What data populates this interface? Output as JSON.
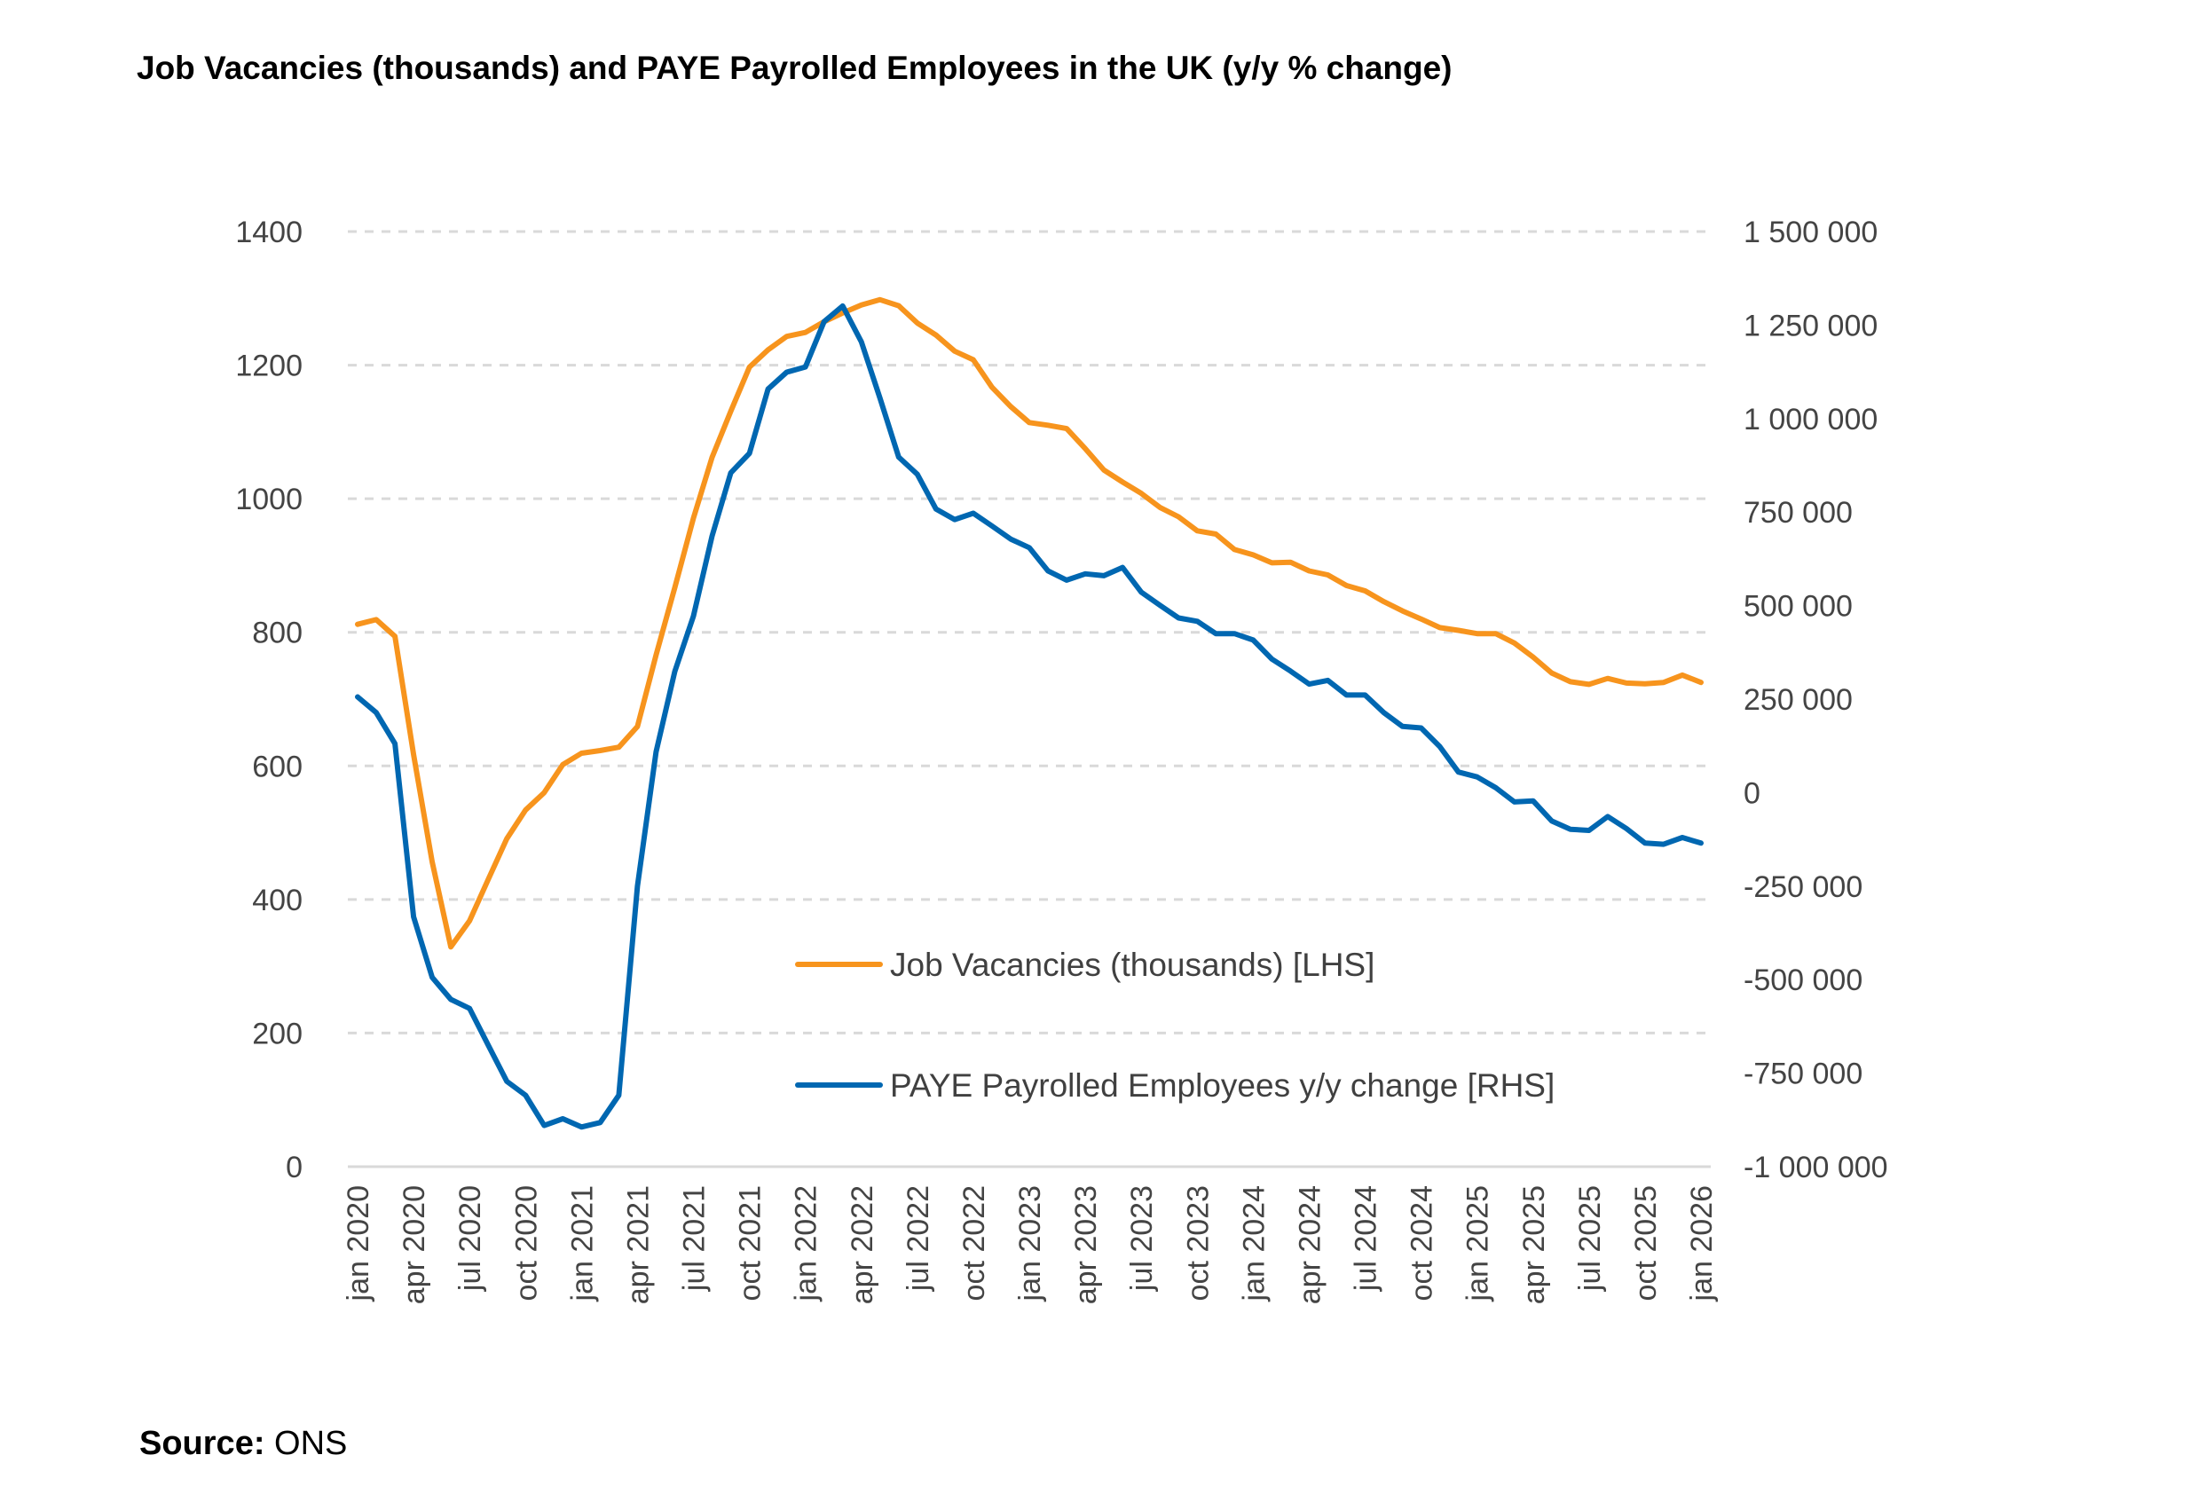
{
  "chart_data": {
    "type": "line",
    "title": "Job Vacancies (thousands) and PAYE Payrolled Employees in the UK (y/y % change)",
    "source_label": "Source:",
    "source": "ONS",
    "x_start": "jan 2020",
    "x_end": "jan 2026",
    "x_tick_labels": [
      "jan 2020",
      "apr 2020",
      "jul 2020",
      "oct 2020",
      "jan 2021",
      "apr 2021",
      "jul 2021",
      "oct 2021",
      "jan 2022",
      "apr 2022",
      "jul 2022",
      "oct 2022",
      "jan 2023",
      "apr 2023",
      "jul 2023",
      "oct 2023",
      "jan 2024",
      "apr 2024",
      "jul 2024",
      "oct 2024",
      "jan 2025",
      "apr 2025",
      "jul 2025",
      "oct 2025",
      "jan 2026"
    ],
    "y_left": {
      "lim": [
        0,
        1400
      ],
      "ticks": [
        0,
        200,
        400,
        600,
        800,
        1000,
        1200,
        1400
      ],
      "tick_labels": [
        "0",
        "200",
        "400",
        "600",
        "800",
        "1000",
        "1200",
        "1400"
      ]
    },
    "y_right": {
      "lim": [
        -1000000,
        1500000
      ],
      "ticks": [
        -1000000,
        -750000,
        -500000,
        -250000,
        0,
        250000,
        500000,
        750000,
        1000000,
        1250000,
        1500000
      ],
      "tick_labels": [
        "-1 000 000",
        "-750 000",
        "-500 000",
        "-250 000",
        "0",
        "250 000",
        "500 000",
        "750 000",
        "1 000 000",
        "1 250 000",
        "1 500 000"
      ]
    },
    "grid": "horizontal dashed",
    "legend_placement": "center-bottom inside",
    "series": [
      {
        "name": "Job Vacancies (thousands) [LHS]",
        "axis": "left",
        "color": "#F7941D",
        "values": [
          812,
          819,
          794,
          617,
          456,
          329,
          368,
          430,
          491,
          534,
          560,
          602,
          619,
          623,
          628,
          659,
          766,
          867,
          971,
          1062,
          1131,
          1197,
          1223,
          1243,
          1249,
          1265,
          1278,
          1290,
          1298,
          1289,
          1263,
          1245,
          1221,
          1208,
          1167,
          1138,
          1114,
          1110,
          1105,
          1075,
          1043,
          1025,
          1008,
          987,
          973,
          952,
          947,
          924,
          916,
          904,
          905,
          892,
          886,
          870,
          862,
          846,
          832,
          820,
          807,
          803,
          798,
          798,
          784,
          763,
          739,
          726,
          722,
          731,
          724,
          723,
          725,
          736,
          725
        ]
      },
      {
        "name": "PAYE Payrolled Employees y/y change [RHS]",
        "axis": "right",
        "color": "#0067B1",
        "values": [
          256000,
          214000,
          131000,
          -332000,
          -494000,
          -553000,
          -577000,
          -675000,
          -772000,
          -809000,
          -890000,
          -872000,
          -894000,
          -882000,
          -809000,
          -250000,
          109000,
          324000,
          472000,
          686000,
          855000,
          907000,
          1079000,
          1124000,
          1138000,
          1259000,
          1301000,
          1205000,
          1054000,
          897000,
          851000,
          758000,
          730000,
          747000,
          713000,
          678000,
          655000,
          593000,
          568000,
          585000,
          580000,
          602000,
          536000,
          501000,
          467000,
          458000,
          425000,
          425000,
          408000,
          357000,
          325000,
          290000,
          300000,
          261000,
          261000,
          214000,
          177000,
          173000,
          123000,
          55000,
          42000,
          13000,
          -25000,
          -22000,
          -76000,
          -98000,
          -101000,
          -64000,
          -96000,
          -135000,
          -138000,
          -120000,
          -135000
        ]
      }
    ]
  }
}
